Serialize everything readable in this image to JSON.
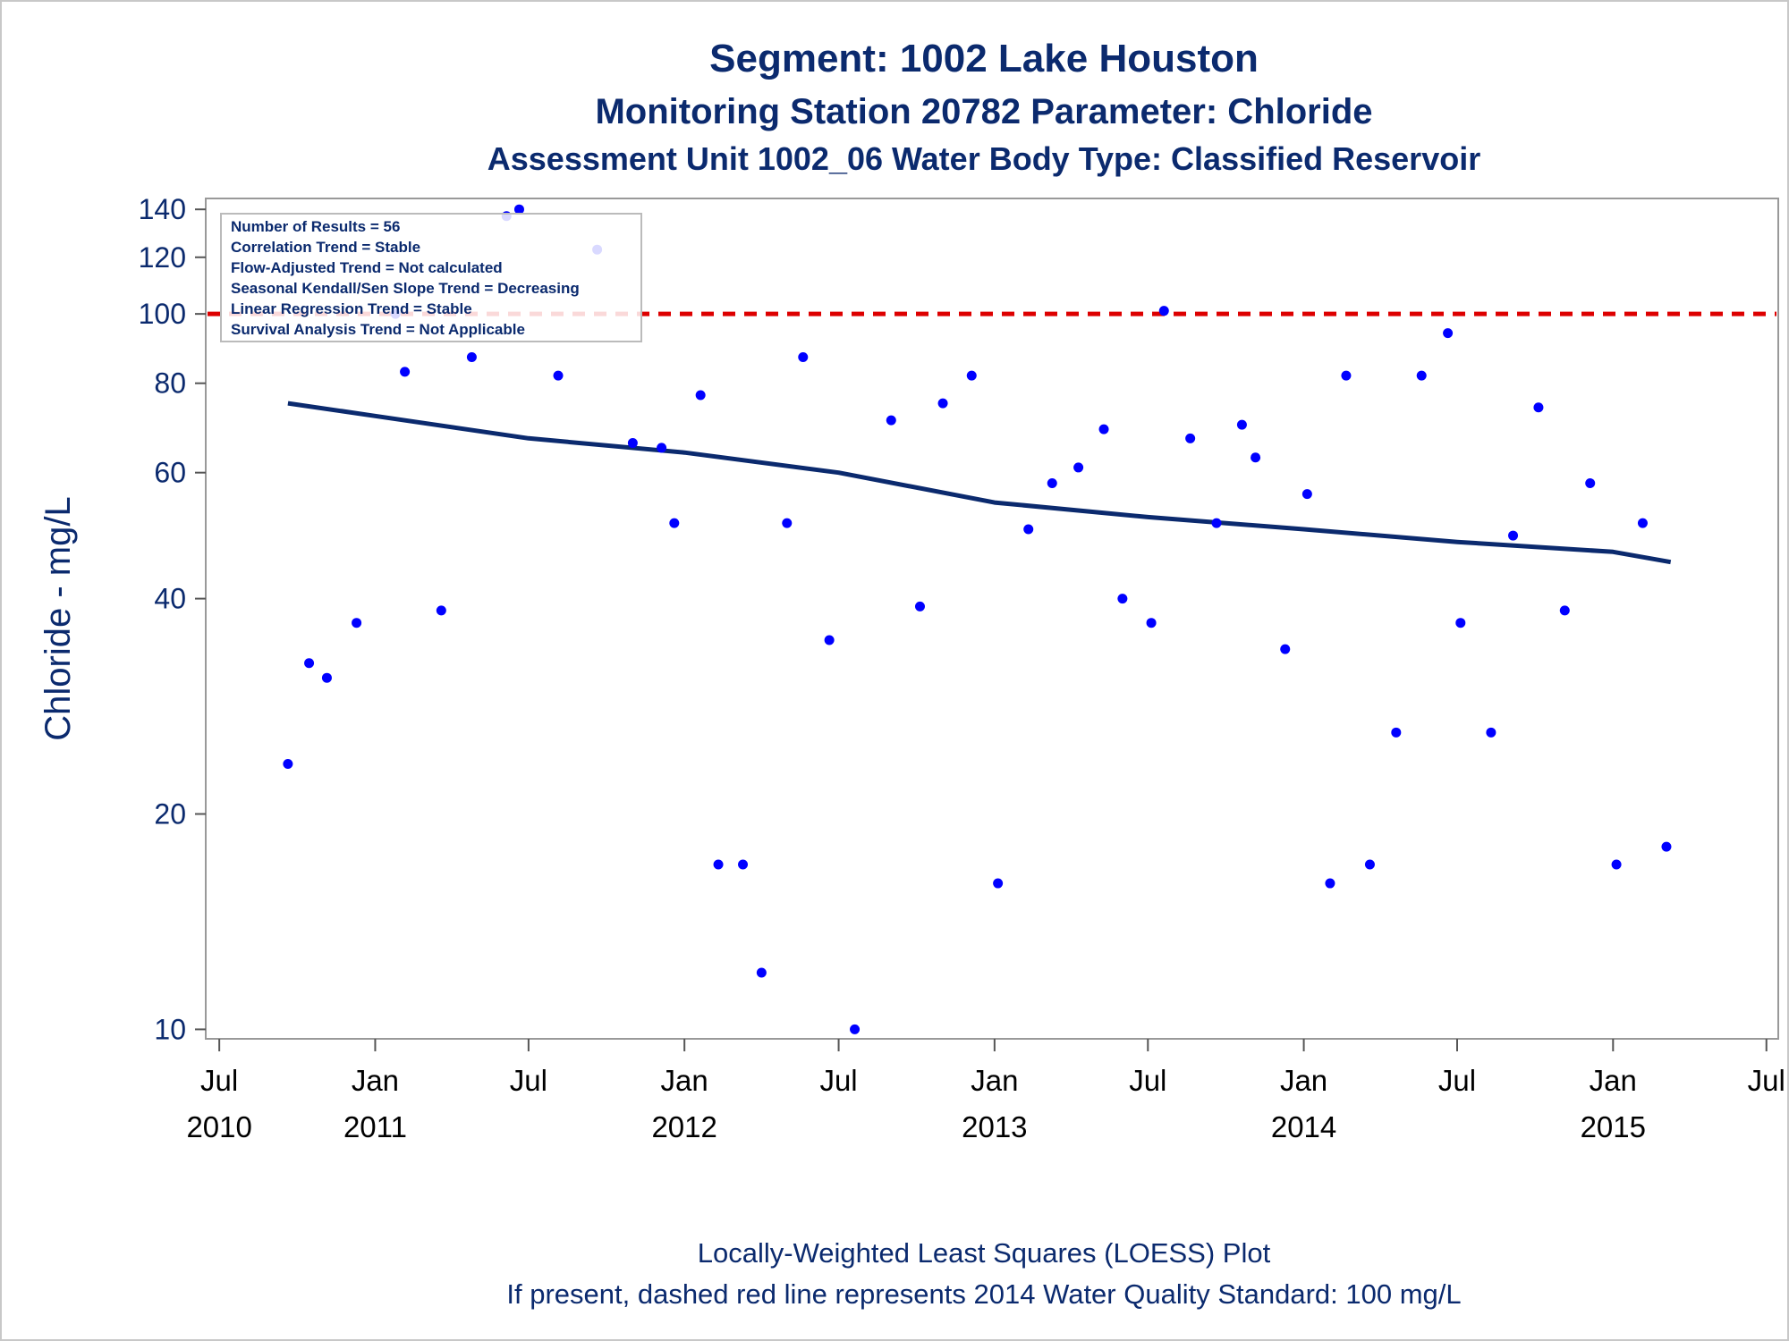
{
  "chart_data": {
    "type": "scatter",
    "title": "Segment: 1002  Lake Houston",
    "subtitle": "Monitoring Station 20782 Parameter: Chloride",
    "subtitle2": "Assessment Unit 1002_06   Water Body Type: Classified Reservoir",
    "xlabel": "",
    "ylabel": "Chloride - mg/L",
    "yscale": "log",
    "ylim": [
      9.7,
      145
    ],
    "y_ticks": [
      10,
      20,
      40,
      60,
      80,
      100,
      120,
      140
    ],
    "xlim": [
      "2010-06-15",
      "2015-07-15"
    ],
    "x_ticks": [
      {
        "date": "2010-07-01",
        "line1": "Jul",
        "line2": "2010"
      },
      {
        "date": "2011-01-01",
        "line1": "Jan",
        "line2": "2011"
      },
      {
        "date": "2011-07-01",
        "line1": "Jul",
        "line2": ""
      },
      {
        "date": "2012-01-01",
        "line1": "Jan",
        "line2": "2012"
      },
      {
        "date": "2012-07-01",
        "line1": "Jul",
        "line2": ""
      },
      {
        "date": "2013-01-01",
        "line1": "Jan",
        "line2": "2013"
      },
      {
        "date": "2013-07-01",
        "line1": "Jul",
        "line2": ""
      },
      {
        "date": "2014-01-01",
        "line1": "Jan",
        "line2": "2014"
      },
      {
        "date": "2014-07-01",
        "line1": "Jul",
        "line2": ""
      },
      {
        "date": "2015-01-01",
        "line1": "Jan",
        "line2": "2015"
      },
      {
        "date": "2015-07-01",
        "line1": "Jul",
        "line2": ""
      }
    ],
    "grid": false,
    "series": [
      {
        "kind": "points",
        "color": "#0000ff",
        "points": [
          [
            "2010-09-20",
            23.5
          ],
          [
            "2010-11-05",
            31.0
          ],
          [
            "2010-12-10",
            37.0
          ],
          [
            "2011-02-05",
            83.0
          ],
          [
            "2011-03-20",
            38.5
          ],
          [
            "2011-04-25",
            87.0
          ],
          [
            "2011-06-05",
            137.0
          ],
          [
            "2011-06-20",
            140.0
          ],
          [
            "2011-08-05",
            82.0
          ],
          [
            "2011-09-20",
            123.0
          ],
          [
            "2011-11-01",
            66.0
          ],
          [
            "2011-12-05",
            65.0
          ],
          [
            "2011-12-20",
            51.0
          ],
          [
            "2012-01-20",
            77.0
          ],
          [
            "2012-02-10",
            17.0
          ],
          [
            "2012-03-10",
            17.0
          ],
          [
            "2012-04-01",
            12.0
          ],
          [
            "2012-05-01",
            51.0
          ],
          [
            "2012-05-20",
            87.0
          ],
          [
            "2012-06-20",
            35.0
          ],
          [
            "2012-07-20",
            10.0
          ],
          [
            "2012-09-01",
            71.0
          ],
          [
            "2012-10-05",
            39.0
          ],
          [
            "2012-11-01",
            75.0
          ],
          [
            "2012-12-05",
            82.0
          ],
          [
            "2013-01-05",
            16.0
          ],
          [
            "2013-02-10",
            50.0
          ],
          [
            "2013-03-10",
            58.0
          ],
          [
            "2013-04-10",
            61.0
          ],
          [
            "2013-05-10",
            69.0
          ],
          [
            "2013-06-01",
            40.0
          ],
          [
            "2013-07-05",
            37.0
          ],
          [
            "2013-07-20",
            101.0
          ],
          [
            "2013-08-20",
            67.0
          ],
          [
            "2013-09-20",
            51.0
          ],
          [
            "2013-10-20",
            70.0
          ],
          [
            "2013-11-05",
            63.0
          ],
          [
            "2013-12-10",
            34.0
          ],
          [
            "2014-01-05",
            56.0
          ],
          [
            "2014-02-01",
            16.0
          ],
          [
            "2014-02-20",
            82.0
          ],
          [
            "2014-03-20",
            17.0
          ],
          [
            "2014-04-20",
            26.0
          ],
          [
            "2014-05-20",
            82.0
          ],
          [
            "2014-06-20",
            94.0
          ],
          [
            "2014-07-05",
            37.0
          ],
          [
            "2014-08-10",
            26.0
          ],
          [
            "2014-09-05",
            49.0
          ],
          [
            "2014-10-05",
            74.0
          ],
          [
            "2014-11-05",
            38.5
          ],
          [
            "2014-12-05",
            58.0
          ],
          [
            "2015-01-05",
            17.0
          ],
          [
            "2015-02-05",
            51.0
          ],
          [
            "2015-03-05",
            18.0
          ],
          [
            "2010-10-15",
            32.5
          ],
          [
            "2011-01-25",
            100.0
          ]
        ]
      },
      {
        "kind": "loess-line",
        "color": "#0b2a6e",
        "points": [
          [
            "2010-09-20",
            75.0
          ],
          [
            "2011-01-01",
            72.0
          ],
          [
            "2011-07-01",
            67.0
          ],
          [
            "2012-01-01",
            64.0
          ],
          [
            "2012-07-01",
            60.0
          ],
          [
            "2013-01-01",
            54.5
          ],
          [
            "2013-07-01",
            52.0
          ],
          [
            "2014-01-01",
            50.0
          ],
          [
            "2014-07-01",
            48.0
          ],
          [
            "2015-01-01",
            46.5
          ],
          [
            "2015-03-10",
            45.0
          ]
        ]
      }
    ],
    "reference_line": {
      "y": 100,
      "color": "#dd0000",
      "style": "dashed"
    },
    "inset_lines": [
      "Number of Results = 56",
      "Correlation Trend = Stable",
      "Flow-Adjusted Trend = Not calculated",
      "Seasonal Kendall/Sen Slope Trend = Decreasing",
      "Linear Regression Trend = Stable",
      "Survival Analysis Trend = Not Applicable"
    ],
    "footnote1": "Locally-Weighted Least Squares (LOESS) Plot",
    "footnote2": "If present, dashed red line represents 2014 Water Quality Standard: 100    mg/L"
  }
}
